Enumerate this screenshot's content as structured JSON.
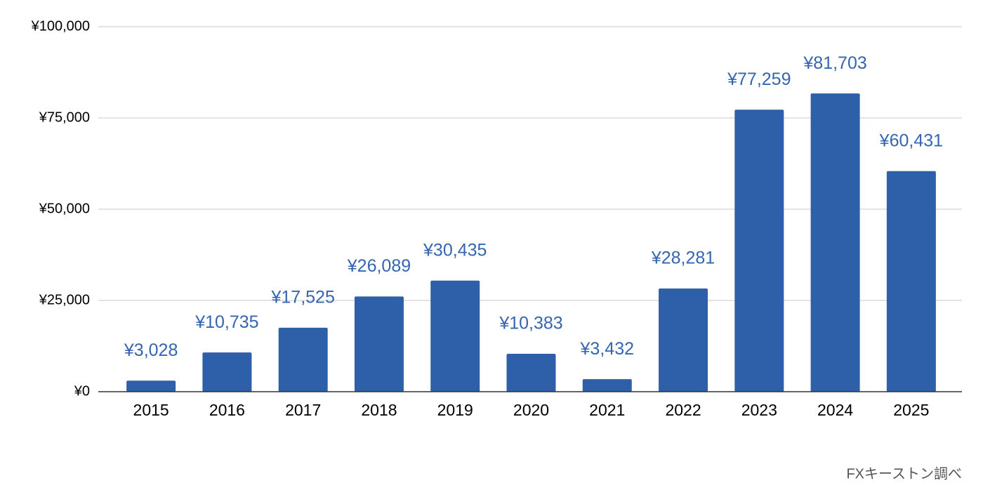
{
  "chart_data": {
    "type": "bar",
    "categories": [
      "2015",
      "2016",
      "2017",
      "2018",
      "2019",
      "2020",
      "2021",
      "2022",
      "2023",
      "2024",
      "2025"
    ],
    "values": [
      3028,
      10735,
      17525,
      26089,
      30435,
      10383,
      3432,
      28281,
      77259,
      81703,
      60431
    ],
    "value_labels": [
      "¥3,028",
      "¥10,735",
      "¥17,525",
      "¥26,089",
      "¥30,435",
      "¥10,383",
      "¥3,432",
      "¥28,281",
      "¥77,259",
      "¥81,703",
      "¥60,431"
    ],
    "color": "#2e5fa9",
    "ylim": [
      0,
      100000
    ],
    "yticks": [
      {
        "value": 0,
        "label": "¥0"
      },
      {
        "value": 25000,
        "label": "¥25,000"
      },
      {
        "value": 50000,
        "label": "¥50,000"
      },
      {
        "value": 75000,
        "label": "¥75,000"
      },
      {
        "value": 100000,
        "label": "¥100,000"
      }
    ],
    "grid": true,
    "source": "FXキーストン調べ"
  }
}
